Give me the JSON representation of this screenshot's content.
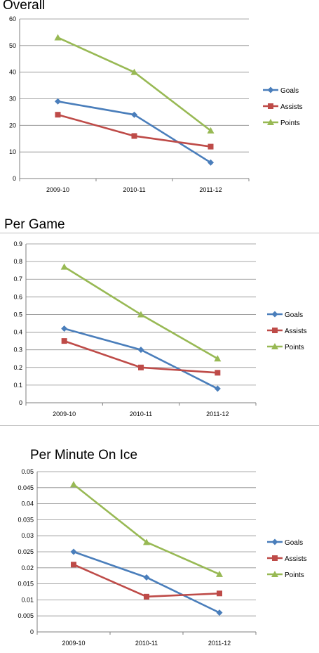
{
  "colors": {
    "goals": "#4a7ebb",
    "assists": "#be4b48",
    "points": "#98b954"
  },
  "chart_data": [
    {
      "type": "line",
      "title": "Overall",
      "categories": [
        "2009-10",
        "2010-11",
        "2011-12"
      ],
      "ylim": [
        0,
        60
      ],
      "yticks": [
        "0",
        "10",
        "20",
        "30",
        "40",
        "50",
        "60"
      ],
      "grid": true,
      "legend": "right",
      "series": [
        {
          "name": "Goals",
          "values": [
            29,
            24,
            6
          ]
        },
        {
          "name": "Assists",
          "values": [
            24,
            16,
            12
          ]
        },
        {
          "name": "Points",
          "values": [
            53,
            40,
            18
          ]
        }
      ]
    },
    {
      "type": "line",
      "title": "Per Game",
      "categories": [
        "2009-10",
        "2010-11",
        "2011-12"
      ],
      "ylim": [
        0,
        0.9
      ],
      "yticks": [
        "0",
        "0.1",
        "0.2",
        "0.3",
        "0.4",
        "0.5",
        "0.6",
        "0.7",
        "0.8",
        "0.9"
      ],
      "grid": true,
      "legend": "right",
      "series": [
        {
          "name": "Goals",
          "values": [
            0.42,
            0.3,
            0.08
          ]
        },
        {
          "name": "Assists",
          "values": [
            0.35,
            0.2,
            0.17
          ]
        },
        {
          "name": "Points",
          "values": [
            0.77,
            0.5,
            0.25
          ]
        }
      ]
    },
    {
      "type": "line",
      "title": "Per Minute On Ice",
      "categories": [
        "2009-10",
        "2010-11",
        "2011-12"
      ],
      "ylim": [
        0,
        0.05
      ],
      "yticks": [
        "0",
        "0.005",
        "0.01",
        "0.015",
        "0.02",
        "0.025",
        "0.03",
        "0.035",
        "0.04",
        "0.045",
        "0.05"
      ],
      "grid": true,
      "legend": "right",
      "series": [
        {
          "name": "Goals",
          "values": [
            0.025,
            0.017,
            0.006
          ]
        },
        {
          "name": "Assists",
          "values": [
            0.021,
            0.011,
            0.012
          ]
        },
        {
          "name": "Points",
          "values": [
            0.046,
            0.028,
            0.018
          ]
        }
      ]
    }
  ]
}
